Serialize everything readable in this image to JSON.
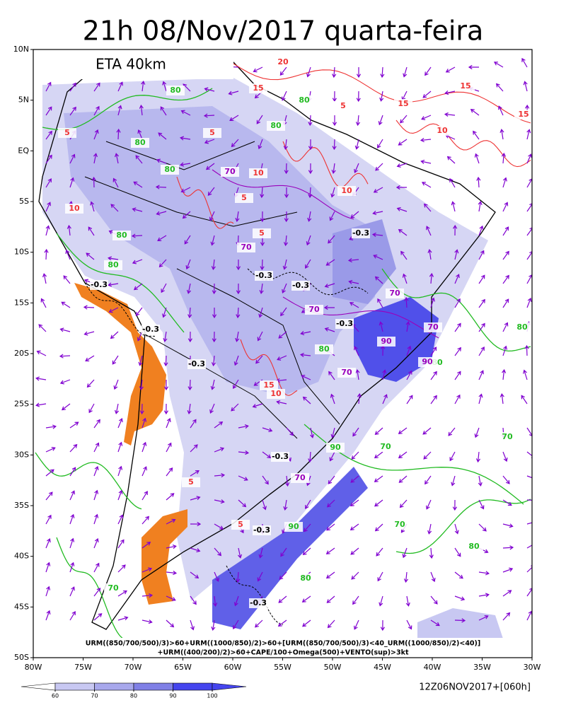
{
  "header": {
    "title": "21h 08/Nov/2017 quarta-feira",
    "model": "ETA 40km"
  },
  "map": {
    "lonlim": [
      -80,
      -30
    ],
    "latlim": [
      10,
      -50
    ],
    "lonticks": [
      {
        "value": -80,
        "label": "80W"
      },
      {
        "value": -75,
        "label": "75W"
      },
      {
        "value": -70,
        "label": "70W"
      },
      {
        "value": -65,
        "label": "65W"
      },
      {
        "value": -60,
        "label": "60W"
      },
      {
        "value": -55,
        "label": "55W"
      },
      {
        "value": -50,
        "label": "50W"
      },
      {
        "value": -45,
        "label": "45W"
      },
      {
        "value": -40,
        "label": "40W"
      },
      {
        "value": -35,
        "label": "35W"
      },
      {
        "value": -30,
        "label": "30W"
      }
    ],
    "latticks": [
      {
        "value": 10,
        "label": "10N"
      },
      {
        "value": 5,
        "label": "5N"
      },
      {
        "value": 0,
        "label": "EQ"
      },
      {
        "value": -5,
        "label": "5S"
      },
      {
        "value": -10,
        "label": "10S"
      },
      {
        "value": -15,
        "label": "15S"
      },
      {
        "value": -20,
        "label": "20S"
      },
      {
        "value": -25,
        "label": "25S"
      },
      {
        "value": -30,
        "label": "30S"
      },
      {
        "value": -35,
        "label": "35S"
      },
      {
        "value": -40,
        "label": "40S"
      },
      {
        "value": -45,
        "label": "45S"
      },
      {
        "value": -50,
        "label": "50S"
      }
    ],
    "rh_labels": {
      "color": "#22bb22",
      "values": [
        80,
        80,
        80,
        80,
        80,
        80,
        80,
        80,
        90,
        70,
        90,
        80,
        70,
        80,
        70,
        80,
        70,
        80
      ]
    },
    "upper_rh_labels": {
      "color": "#9900bb",
      "values": [
        70,
        70,
        70,
        70,
        70,
        70,
        70,
        90,
        90
      ]
    },
    "cape_labels": {
      "color": "#ee3333",
      "values": [
        5,
        5,
        5,
        5,
        5,
        5,
        5,
        10,
        10,
        10,
        10,
        10,
        15,
        15,
        15,
        15,
        15,
        20
      ]
    },
    "omega_labels": {
      "color": "#000000",
      "values": [
        -0.3,
        -0.3,
        -0.3,
        -0.3,
        -0.3,
        -0.3,
        -0.3,
        -0.3,
        -0.3,
        -0.3
      ]
    }
  },
  "footer": {
    "formula_line1": "URM((850/700/500)/3)>60+URM((1000/850)/2)>60+[URM((850/700/500)/3)<40_URM((1000/850)/2)<40)]",
    "formula_line2": "+URM((400/200)/2)>60+CAPE/100+Omega(500)+VENTO(sup)>3kt",
    "run": "12Z06NOV2017+[060h]"
  },
  "colorbar": {
    "ticks": [
      60,
      70,
      80,
      90,
      100
    ],
    "colors": [
      "#e8e8fa",
      "#c8c8f2",
      "#a8a8ec",
      "#8080e6",
      "#4545ee"
    ]
  }
}
